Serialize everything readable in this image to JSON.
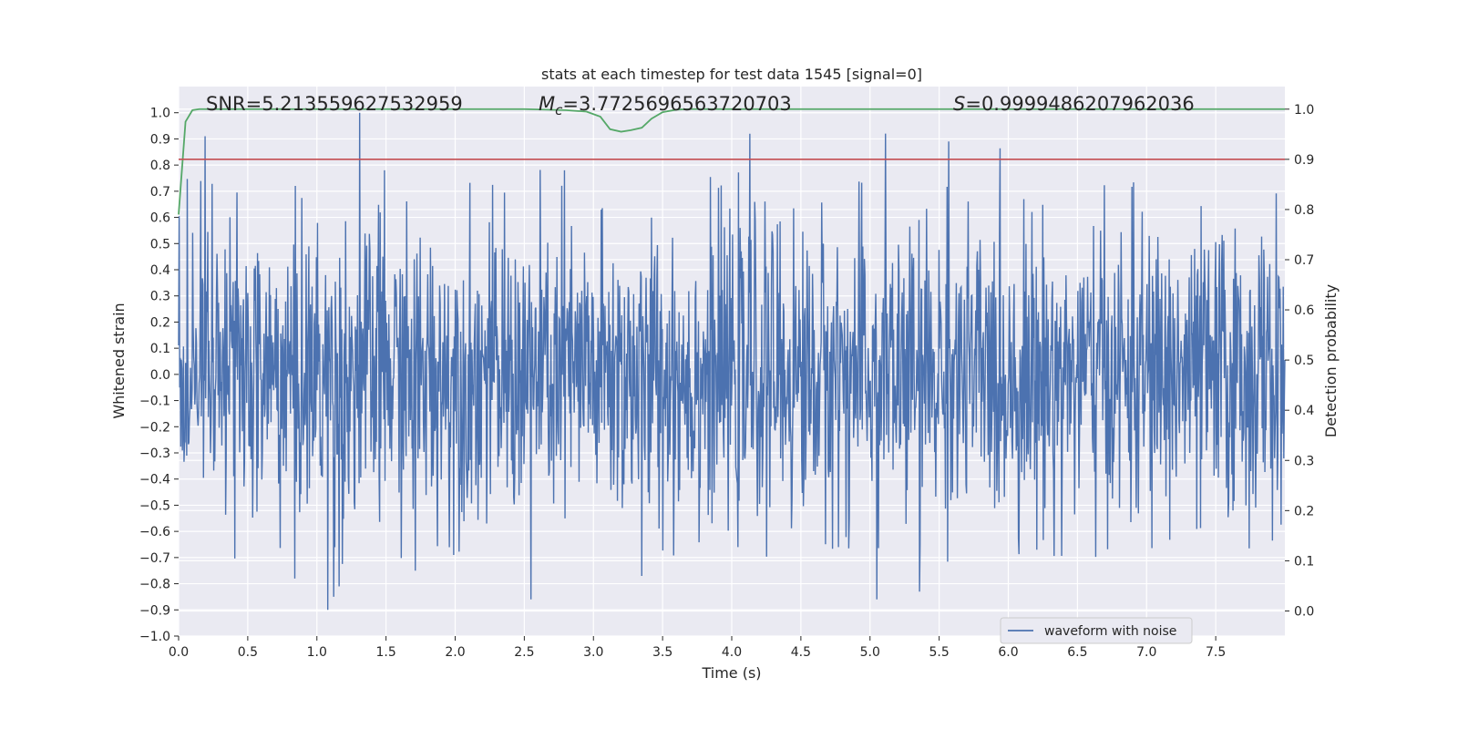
{
  "chart_data": {
    "type": "line",
    "title": "stats at each timestep for test data 1545 [signal=0]",
    "xlabel": "Time (s)",
    "ylabel": "Whitened strain",
    "y2label": "Detection probability",
    "xlim": [
      0.0,
      8.0
    ],
    "ylim": [
      -1.0,
      1.1
    ],
    "y2lim": [
      -0.05,
      1.045
    ],
    "xticks": [
      "0.0",
      "0.5",
      "1.0",
      "1.5",
      "2.0",
      "2.5",
      "3.0",
      "3.5",
      "4.0",
      "4.5",
      "5.0",
      "5.5",
      "6.0",
      "6.5",
      "7.0",
      "7.5"
    ],
    "yticks": [
      "−1.0",
      "−0.9",
      "−0.8",
      "−0.7",
      "−0.6",
      "−0.5",
      "−0.4",
      "−0.3",
      "−0.2",
      "−0.1",
      "0.0",
      "0.1",
      "0.2",
      "0.3",
      "0.4",
      "0.5",
      "0.6",
      "0.7",
      "0.8",
      "0.9",
      "1.0"
    ],
    "y2ticks": [
      "0.0",
      "0.1",
      "0.2",
      "0.3",
      "0.4",
      "0.5",
      "0.6",
      "0.7",
      "0.8",
      "0.9",
      "1.0"
    ],
    "grid": true,
    "legend": {
      "placement": "lower-right",
      "entries": [
        "waveform with noise"
      ]
    },
    "annotations": {
      "snr": "SNR=5.213559627532959",
      "mc_symbol": "M",
      "mc_sub": "c",
      "mc_value": "=3.7725696563720703",
      "s_symbol": "S",
      "s_value": "=0.9999486207962036"
    },
    "series": [
      {
        "name": "waveform with noise",
        "axis": "left",
        "color": "#4c72b0",
        "kind": "noise",
        "t_range": [
          0.0,
          8.0
        ],
        "samples": 2048,
        "amplitude_range": [
          -0.9,
          1.0
        ],
        "peaks": [
          {
            "t": 0.19,
            "y": 0.91
          },
          {
            "t": 1.31,
            "y": 1.0
          },
          {
            "t": 1.49,
            "y": 0.78
          },
          {
            "t": 4.13,
            "y": 0.92
          },
          {
            "t": 5.11,
            "y": 0.92
          },
          {
            "t": 5.57,
            "y": 0.89
          },
          {
            "t": 2.79,
            "y": 0.78
          },
          {
            "t": 1.08,
            "y": -0.9
          },
          {
            "t": 1.12,
            "y": -0.85
          },
          {
            "t": 1.16,
            "y": -0.81
          },
          {
            "t": 2.55,
            "y": -0.86
          },
          {
            "t": 5.05,
            "y": -0.86
          },
          {
            "t": 0.84,
            "y": -0.78
          },
          {
            "t": 5.36,
            "y": -0.83
          },
          {
            "t": 1.71,
            "y": -0.75
          },
          {
            "t": 3.35,
            "y": -0.77
          }
        ]
      },
      {
        "name": "",
        "axis": "right",
        "color": "#55a868",
        "x": [
          0.0,
          0.05,
          0.1,
          0.15,
          0.5,
          1.0,
          1.5,
          2.0,
          2.5,
          2.8,
          2.95,
          3.05,
          3.12,
          3.2,
          3.27,
          3.35,
          3.42,
          3.5,
          3.6,
          3.7,
          3.85,
          4.0,
          5.0,
          6.0,
          7.0,
          8.0
        ],
        "values": [
          0.79,
          0.975,
          0.998,
          1.0,
          1.0,
          1.0,
          1.0,
          1.0,
          1.0,
          0.998,
          0.995,
          0.985,
          0.96,
          0.955,
          0.958,
          0.963,
          0.981,
          0.994,
          0.999,
          1.0,
          1.0,
          1.0,
          1.0,
          1.0,
          1.0,
          1.0
        ]
      },
      {
        "name": "",
        "axis": "right",
        "color": "#c44e52",
        "kind": "threshold",
        "value": 0.9
      }
    ]
  }
}
